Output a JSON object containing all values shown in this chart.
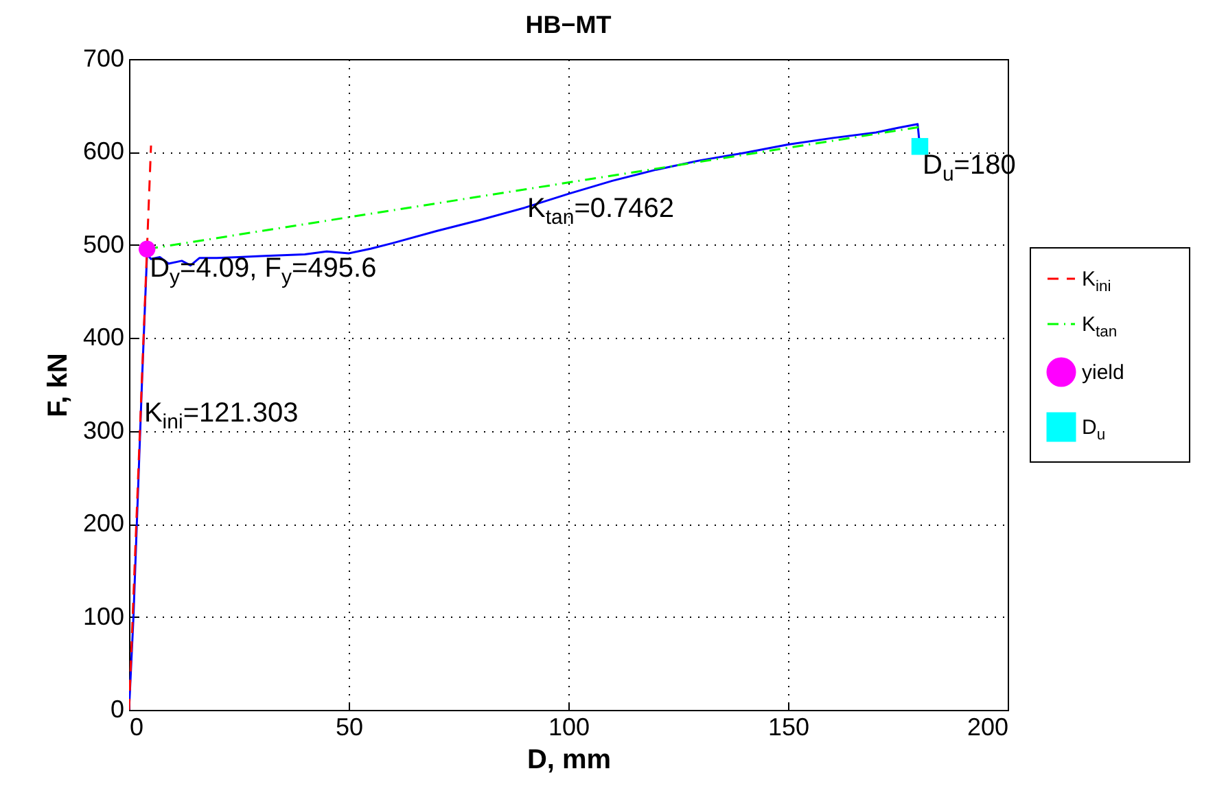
{
  "chart_data": {
    "type": "line",
    "title": "HB−MT",
    "xlabel": "D, mm",
    "ylabel": "F, kN",
    "xlim": [
      0,
      200
    ],
    "xticks": [
      0,
      50,
      100,
      150,
      200
    ],
    "ylim": [
      0,
      700
    ],
    "yticks": [
      0,
      100,
      200,
      300,
      400,
      500,
      600,
      700
    ],
    "grid": true,
    "legend": "right",
    "series": [
      {
        "color": "#0000ff",
        "line_style": "solid",
        "x": [
          0,
          1,
          2,
          3,
          4.09,
          5,
          7,
          9,
          12,
          14,
          16,
          20,
          25,
          30,
          40,
          45,
          50,
          55,
          60,
          70,
          80,
          90,
          100,
          110,
          120,
          130,
          140,
          150,
          160,
          170,
          175,
          179.5,
          180
        ],
        "values": [
          0,
          100,
          230,
          360,
          490,
          485,
          487,
          480,
          483,
          478,
          486,
          486,
          487,
          488,
          490,
          493,
          491,
          496,
          502,
          515,
          527,
          540,
          555,
          569,
          581,
          591,
          599,
          608,
          615,
          621,
          626,
          630,
          606
        ]
      },
      {
        "name": "K$_{ini}$",
        "color": "#ff0000",
        "line_style": "dashed",
        "x": [
          0,
          5
        ],
        "values": [
          0,
          607
        ]
      },
      {
        "name": "K$_{tan}$",
        "color": "#00ff00",
        "line_style": "dashdot",
        "x": [
          4.09,
          180
        ],
        "values": [
          495.6,
          626.9
        ]
      },
      {
        "name": "yield",
        "color": "#ff00ff",
        "type": "scatter",
        "marker": "circle",
        "x": [
          4.09
        ],
        "values": [
          495.6
        ]
      },
      {
        "name": "D$_{u}$",
        "color": "#00ffff",
        "type": "scatter",
        "marker": "square",
        "x": [
          180
        ],
        "values": [
          606
        ]
      }
    ],
    "annotations": [
      {
        "text": "D$_{y}$=4.09, F$_{y}$=495.6",
        "x": 4.09,
        "y": 495.6
      },
      {
        "text": "K$_{ini}$=121.303",
        "x": 2.8,
        "y": 340
      },
      {
        "text": "K$_{tan}$=0.7462",
        "x": 90,
        "y": 560
      },
      {
        "text": "D$_{u}$=180",
        "x": 180,
        "y": 606
      }
    ]
  }
}
